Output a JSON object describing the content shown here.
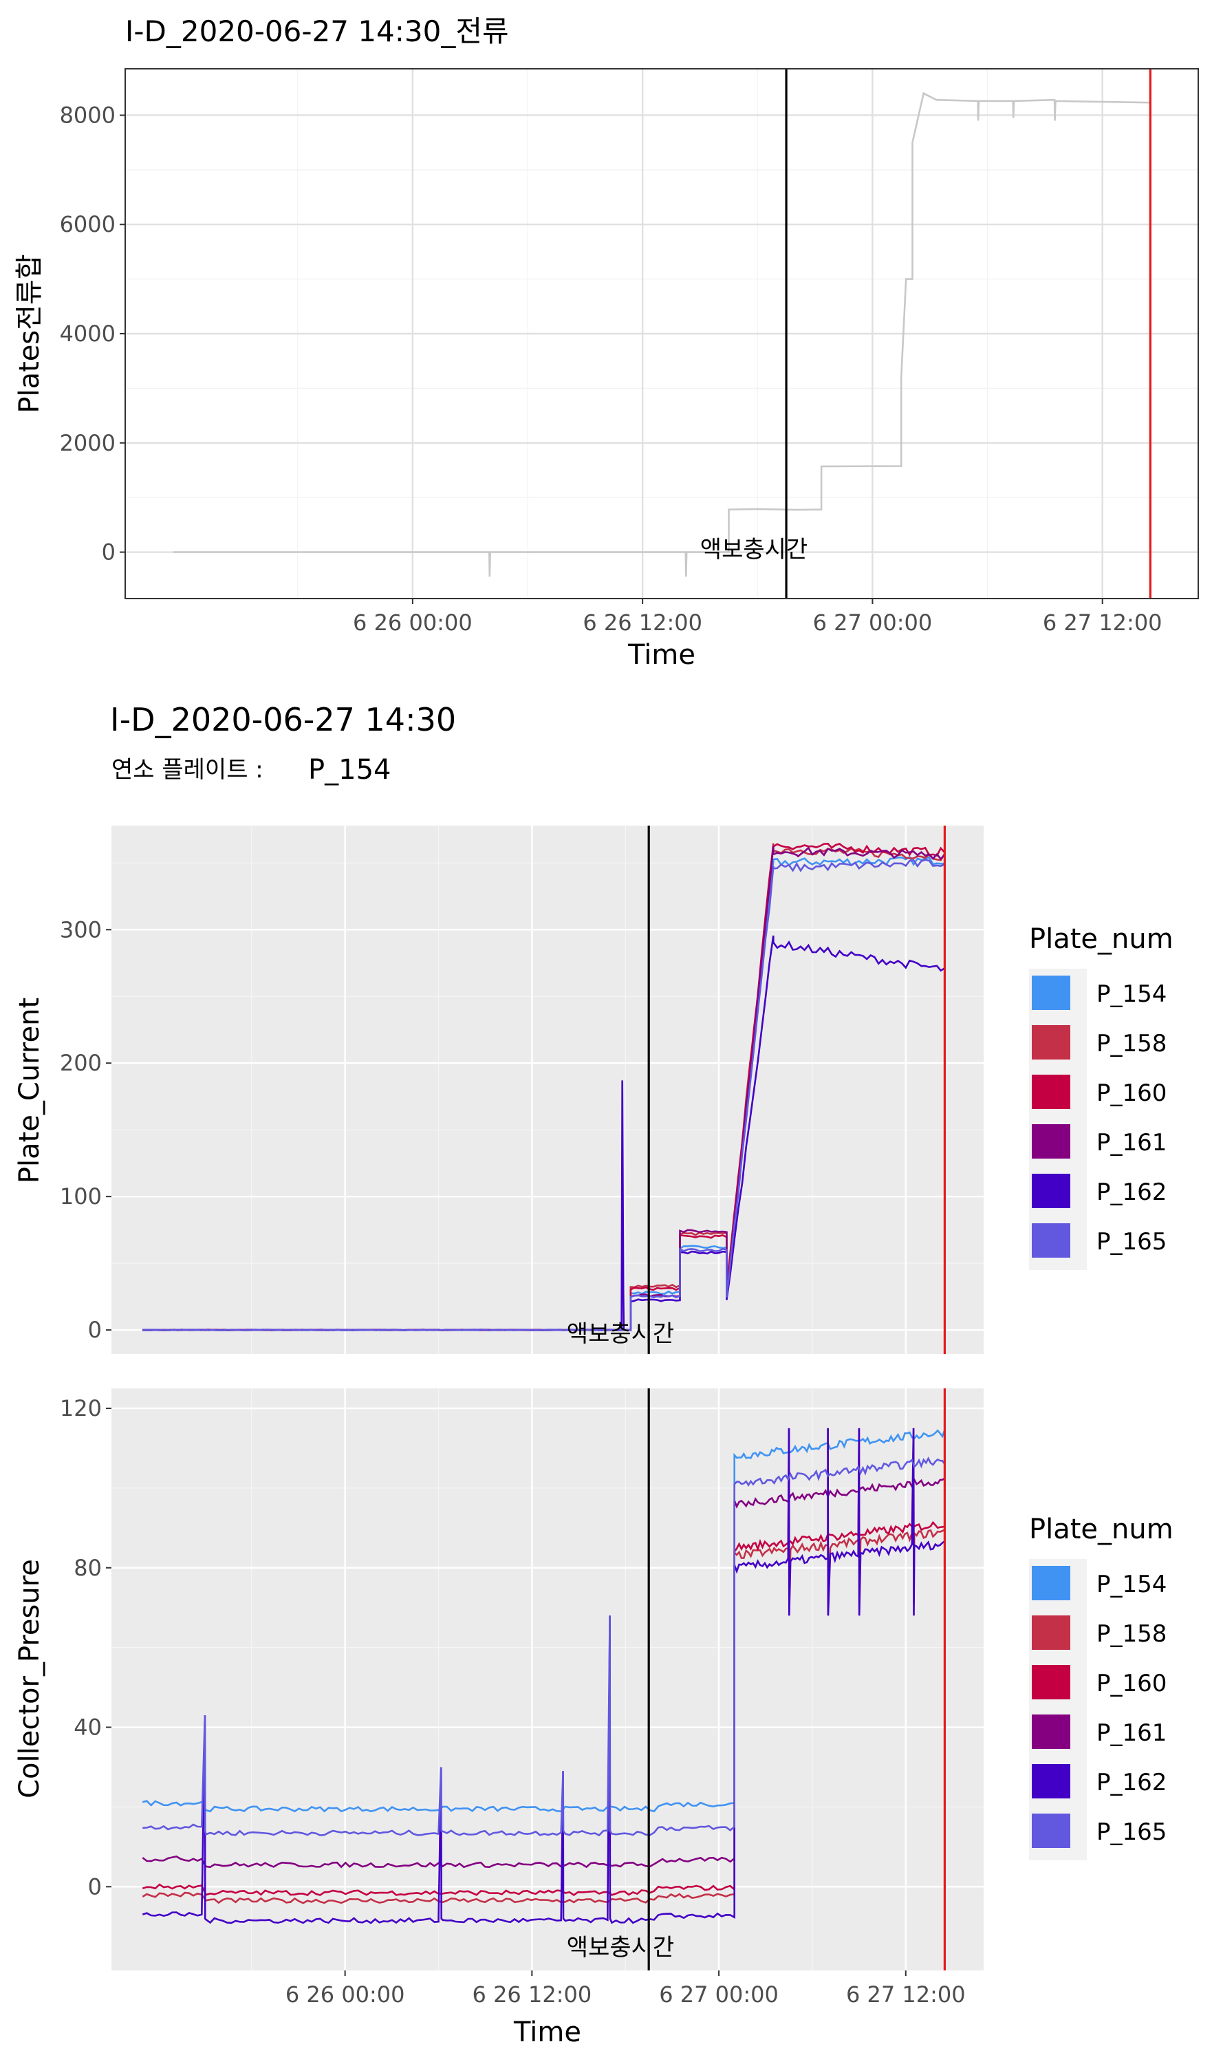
{
  "chart_data": [
    {
      "type": "line",
      "title": "I-D_2020-06-27 14:30_전류",
      "xlabel": "Time",
      "ylabel": "Plates전류합",
      "xlim": [
        "2020-06-25 09:00",
        "2020-06-27 17:00"
      ],
      "ylim": [
        -850,
        8850
      ],
      "x_ticks": [
        "6 26 00:00",
        "6 26 12:00",
        "6 27 00:00",
        "6 27 12:00"
      ],
      "y_ticks": [
        0,
        2000,
        4000,
        6000,
        8000
      ],
      "grid": true,
      "vlines": [
        {
          "x": "2020-06-26 19:30",
          "color": "#000000",
          "label": "액보충시간"
        },
        {
          "x": "2020-06-27 14:30",
          "color": "#e41a1c"
        }
      ],
      "series": [
        {
          "color": "#c8c8c8",
          "points": [
            [
              "2020-06-25 11:30",
              0
            ],
            [
              "2020-06-26 04:00",
              0
            ],
            [
              "2020-06-26 04:01",
              -450
            ],
            [
              "2020-06-26 04:03",
              0
            ],
            [
              "2020-06-26 14:15",
              0
            ],
            [
              "2020-06-26 14:16",
              -450
            ],
            [
              "2020-06-26 14:18",
              0
            ],
            [
              "2020-06-26 16:30",
              0
            ],
            [
              "2020-06-26 16:30",
              780
            ],
            [
              "2020-06-26 18:00",
              790
            ],
            [
              "2020-06-26 20:00",
              775
            ],
            [
              "2020-06-26 21:20",
              780
            ],
            [
              "2020-06-26 21:20",
              1570
            ],
            [
              "2020-06-27 01:30",
              1575
            ],
            [
              "2020-06-27 01:30",
              3200
            ],
            [
              "2020-06-27 01:45",
              5000
            ],
            [
              "2020-06-27 02:05",
              5000
            ],
            [
              "2020-06-27 02:05",
              7500
            ],
            [
              "2020-06-27 02:40",
              8400
            ],
            [
              "2020-06-27 03:20",
              8280
            ],
            [
              "2020-06-27 05:30",
              8260
            ],
            [
              "2020-06-27 05:31",
              7900
            ],
            [
              "2020-06-27 05:33",
              8260
            ],
            [
              "2020-06-27 07:20",
              8260
            ],
            [
              "2020-06-27 07:21",
              7950
            ],
            [
              "2020-06-27 07:23",
              8260
            ],
            [
              "2020-06-27 09:30",
              8280
            ],
            [
              "2020-06-27 09:31",
              7900
            ],
            [
              "2020-06-27 09:33",
              8260
            ],
            [
              "2020-06-27 14:30",
              8230
            ]
          ]
        }
      ]
    },
    {
      "type": "line",
      "title": "I-D_2020-06-27 14:30",
      "subtitle_label": "연소 플레이트 :",
      "subtitle_value": "P_154",
      "ylabel": "Plate_Current",
      "xlim": [
        "2020-06-25 09:00",
        "2020-06-27 17:00"
      ],
      "ylim": [
        -18,
        378
      ],
      "y_ticks": [
        0,
        100,
        200,
        300
      ],
      "grid": true,
      "vlines": [
        {
          "x": "2020-06-26 19:30",
          "color": "#000000",
          "label": "액보충시간"
        },
        {
          "x": "2020-06-27 14:30",
          "color": "#e41a1c"
        }
      ],
      "legend": {
        "title": "Plate_num",
        "position": "right"
      },
      "series": [
        {
          "name": "P_154",
          "color": "#4093f3",
          "steps": [
            0,
            0,
            28,
            62,
            350,
            352
          ]
        },
        {
          "name": "P_158",
          "color": "#c33047",
          "steps": [
            0,
            0,
            33,
            72,
            362,
            355
          ]
        },
        {
          "name": "P_160",
          "color": "#c40042",
          "steps": [
            0,
            0,
            31,
            70,
            365,
            358
          ]
        },
        {
          "name": "P_161",
          "color": "#840081",
          "steps": [
            0,
            0,
            26,
            74,
            360,
            356
          ]
        },
        {
          "name": "P_162",
          "color": "#4200c6",
          "steps": [
            0,
            0,
            22,
            58,
            295,
            270
          ]
        },
        {
          "name": "P_165",
          "color": "#6158df",
          "steps": [
            0,
            0,
            25,
            60,
            345,
            350
          ]
        }
      ]
    },
    {
      "type": "line",
      "xlabel": "Time",
      "ylabel": "Collector_Presure",
      "xlim": [
        "2020-06-25 09:00",
        "2020-06-27 17:00"
      ],
      "ylim": [
        -21,
        125
      ],
      "x_ticks": [
        "6 26 00:00",
        "6 26 12:00",
        "6 27 00:00",
        "6 27 12:00"
      ],
      "y_ticks": [
        0,
        40,
        80,
        120
      ],
      "grid": true,
      "vlines": [
        {
          "x": "2020-06-26 19:30",
          "color": "#000000",
          "label": "액보충시간"
        },
        {
          "x": "2020-06-27 14:30",
          "color": "#e41a1c"
        }
      ],
      "legend": {
        "title": "Plate_num",
        "position": "right"
      },
      "series": [
        {
          "name": "P_154",
          "color": "#4093f3",
          "before": 21,
          "after": 111
        },
        {
          "name": "P_158",
          "color": "#c33047",
          "before": -2,
          "after": 86
        },
        {
          "name": "P_160",
          "color": "#c40042",
          "before": 0,
          "after": 88
        },
        {
          "name": "P_161",
          "color": "#840081",
          "before": 7,
          "after": 99
        },
        {
          "name": "P_162",
          "color": "#4200c6",
          "before": -7,
          "after": 83
        },
        {
          "name": "P_165",
          "color": "#6158df",
          "before": 15,
          "after": 104
        }
      ]
    }
  ]
}
